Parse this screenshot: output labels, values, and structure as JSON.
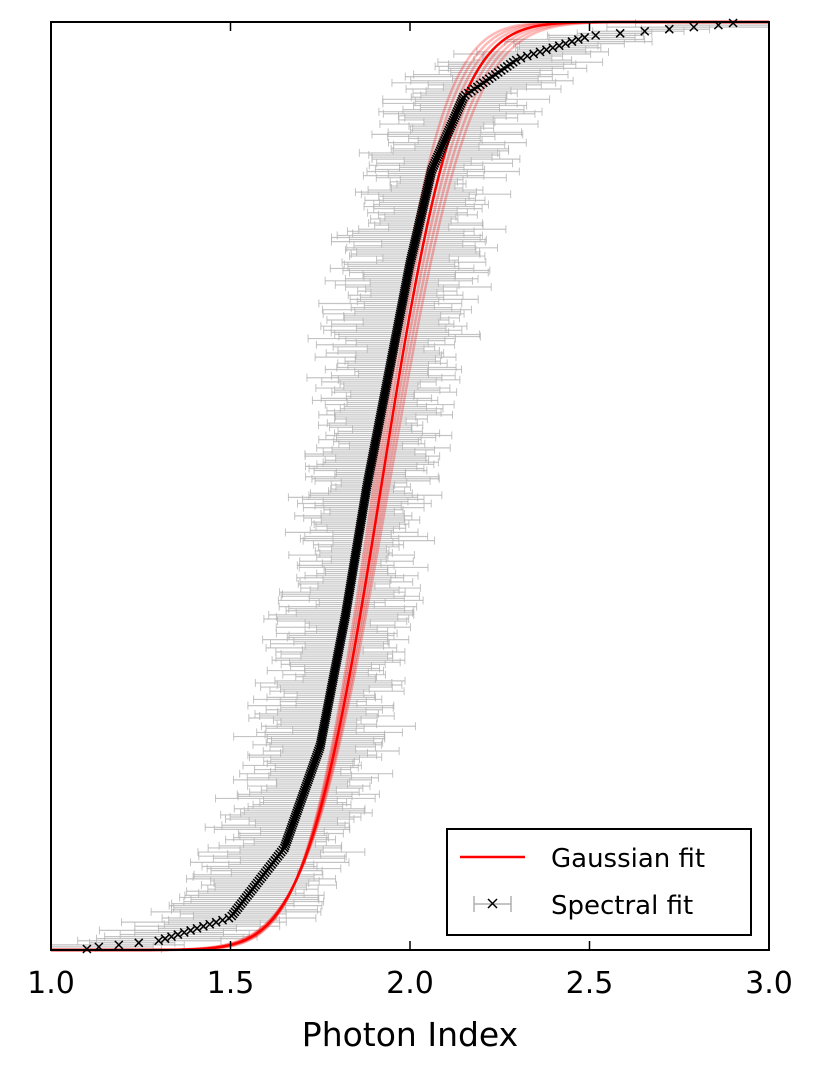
{
  "chart_data": {
    "type": "scatter",
    "title": "",
    "xlabel": "Photon Index",
    "ylabel": "",
    "xlim": [
      1.0,
      3.0
    ],
    "ylim": [
      0,
      1
    ],
    "xticks": [
      1.0,
      1.5,
      2.0,
      2.5,
      3.0
    ],
    "xtick_labels": [
      "1.0",
      "1.5",
      "2.0",
      "2.5",
      "3.0"
    ],
    "yticks_shown": false,
    "grid": false,
    "legend": {
      "placement": "lower-right",
      "entries": [
        {
          "label": "Gaussian fit",
          "style": "line",
          "color": "#ff0000"
        },
        {
          "label": "Spectral fit",
          "style": "marker-errorbar",
          "color": "#000000"
        }
      ]
    },
    "gaussian_fit": {
      "mean": 1.92,
      "sigma": 0.165,
      "band_sigma_spread": 0.012,
      "color": "#ff0000"
    },
    "spectral_fit": {
      "marker": "x",
      "marker_color": "#000000",
      "errorbar_color": "#b0b0b0",
      "n_points": 450,
      "description_points": [
        {
          "x": 1.1,
          "y": 0.002
        },
        {
          "x": 1.3,
          "y": 0.01
        },
        {
          "x": 1.5,
          "y": 0.035
        },
        {
          "x": 1.65,
          "y": 0.11
        },
        {
          "x": 1.75,
          "y": 0.22
        },
        {
          "x": 1.82,
          "y": 0.36
        },
        {
          "x": 1.88,
          "y": 0.5
        },
        {
          "x": 1.94,
          "y": 0.62
        },
        {
          "x": 2.0,
          "y": 0.74
        },
        {
          "x": 2.06,
          "y": 0.84
        },
        {
          "x": 2.15,
          "y": 0.92
        },
        {
          "x": 2.3,
          "y": 0.96
        },
        {
          "x": 2.5,
          "y": 0.985
        },
        {
          "x": 2.9,
          "y": 0.998
        }
      ],
      "typical_error_halfwidth": 0.13
    }
  }
}
